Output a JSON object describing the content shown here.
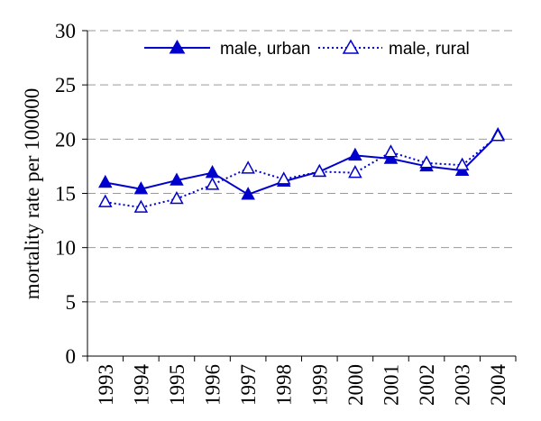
{
  "chart_data": {
    "type": "line",
    "title": "",
    "xlabel": "",
    "ylabel": "mortality rate per 100000",
    "x": [
      "1993",
      "1994",
      "1995",
      "1996",
      "1997",
      "1998",
      "1999",
      "2000",
      "2001",
      "2002",
      "2003",
      "2004"
    ],
    "ylim": [
      0,
      30
    ],
    "yticks": [
      0,
      5,
      10,
      15,
      20,
      25,
      30
    ],
    "grid": true,
    "legend_position": "top",
    "series": [
      {
        "name": "male, urban",
        "style": "solid",
        "marker": "filled-triangle",
        "color": "#0000cc",
        "values": [
          16.0,
          15.4,
          16.2,
          16.9,
          14.9,
          16.1,
          17.0,
          18.5,
          18.2,
          17.5,
          17.1,
          20.4
        ]
      },
      {
        "name": "male, rural",
        "style": "dotted",
        "marker": "open-triangle",
        "color": "#0000cc",
        "values": [
          14.2,
          13.7,
          14.5,
          15.8,
          17.3,
          16.3,
          17.0,
          16.9,
          18.8,
          17.8,
          17.6,
          20.3
        ]
      }
    ]
  }
}
